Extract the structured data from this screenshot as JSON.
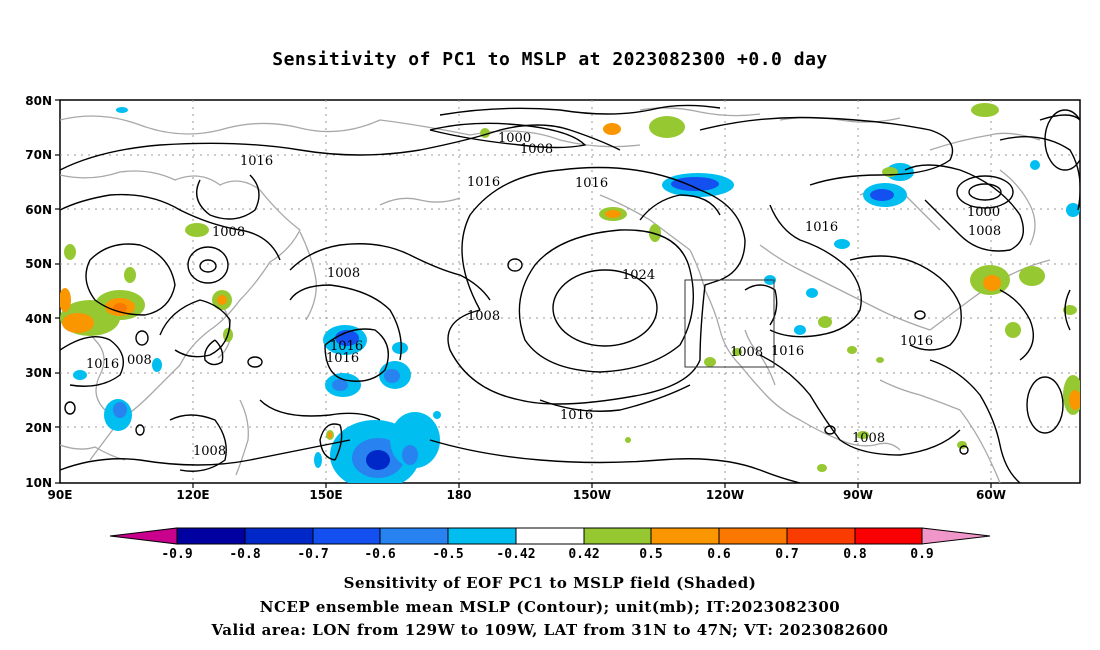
{
  "title": "Sensitivity of PC1 to MSLP at 2023082300 +0.0 day",
  "lat_labels": [
    "80N",
    "70N",
    "60N",
    "50N",
    "40N",
    "30N",
    "20N",
    "10N"
  ],
  "lon_labels": [
    "90E",
    "120E",
    "150E",
    "180",
    "150W",
    "120W",
    "90W",
    "60W"
  ],
  "contour_labels": [
    {
      "text": "1000"
    },
    {
      "text": "1008"
    },
    {
      "text": "1016"
    },
    {
      "text": "1016"
    },
    {
      "text": "1016"
    },
    {
      "text": "1008"
    },
    {
      "text": "1008"
    },
    {
      "text": "1024"
    },
    {
      "text": "1008"
    },
    {
      "text": "1016"
    },
    {
      "text": "1016"
    },
    {
      "text": "1016"
    },
    {
      "text": "008"
    },
    {
      "text": "1016"
    },
    {
      "text": "1008"
    },
    {
      "text": "1016"
    },
    {
      "text": "1016"
    },
    {
      "text": "1008"
    },
    {
      "text": "1016"
    },
    {
      "text": "1000"
    },
    {
      "text": "1008"
    },
    {
      "text": "1008"
    }
  ],
  "colorbar": {
    "labels": [
      "-0.9",
      "-0.8",
      "-0.7",
      "-0.6",
      "-0.5",
      "-0.42",
      "0.42",
      "0.5",
      "0.6",
      "0.7",
      "0.8",
      "0.9"
    ],
    "colors": [
      "#c8008c",
      "#0000a0",
      "#0028c8",
      "#1450f0",
      "#2882f0",
      "#00bef0",
      "#ffffff",
      "#96c832",
      "#fa9600",
      "#fa7800",
      "#fa3c00",
      "#fa0000",
      "#f096c8"
    ]
  },
  "caption": {
    "line1": "Sensitivity of EOF PC1 to MSLP field (Shaded)",
    "line2": "NCEP ensemble mean MSLP (Contour); unit(mb); IT:2023082300",
    "line3": "Valid area: LON from 129W to 109W, LAT from 31N to 47N; VT: 2023082600"
  }
}
